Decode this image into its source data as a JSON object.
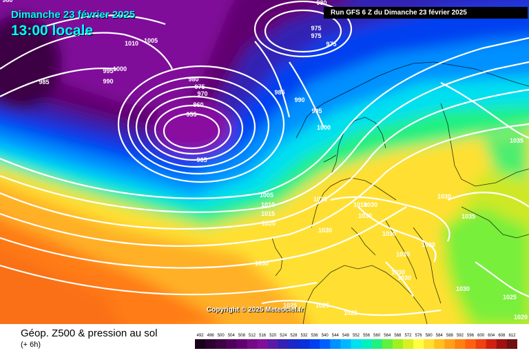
{
  "header": {
    "date_label": "Dimanche 23 février 2025",
    "time_label": "13:00 locale",
    "run_label": "Run GFS 6 Z du Dimanche 23 février 2025"
  },
  "copyright": "Copyright © 2025 Meteociel.fr",
  "footer": {
    "title": "Géop. Z500 & pression au sol",
    "subtitle": "(+ 6h)"
  },
  "legend": {
    "values": [
      "492",
      "496",
      "500",
      "504",
      "508",
      "512",
      "516",
      "520",
      "524",
      "528",
      "532",
      "536",
      "540",
      "544",
      "548",
      "552",
      "556",
      "560",
      "564",
      "568",
      "572",
      "576",
      "580",
      "584",
      "588",
      "592",
      "596",
      "600",
      "604",
      "608",
      "612"
    ],
    "colors": [
      "#1a001a",
      "#2b0030",
      "#3d0045",
      "#4f005a",
      "#610070",
      "#740a86",
      "#80109a",
      "#5a1aa8",
      "#3320b4",
      "#1a28c8",
      "#0a30dc",
      "#0040f0",
      "#0060ff",
      "#0090ff",
      "#00b8ff",
      "#00e0f0",
      "#00f0c0",
      "#20f080",
      "#60f040",
      "#a0f020",
      "#d8f020",
      "#ffff40",
      "#ffe030",
      "#ffc020",
      "#ffa018",
      "#ff8010",
      "#ff6010",
      "#f04010",
      "#d02010",
      "#a01010",
      "#701010"
    ]
  },
  "isobar_labels": [
    {
      "text": "1010"
    },
    {
      "text": "1005"
    },
    {
      "text": "995"
    },
    {
      "text": "1000"
    },
    {
      "text": "985"
    },
    {
      "text": "990"
    },
    {
      "text": "980"
    },
    {
      "text": "975"
    },
    {
      "text": "975"
    },
    {
      "text": "975"
    },
    {
      "text": "980"
    },
    {
      "text": "980"
    },
    {
      "text": "975"
    },
    {
      "text": "970"
    },
    {
      "text": "960"
    },
    {
      "text": "955"
    },
    {
      "text": "965"
    },
    {
      "text": "985"
    },
    {
      "text": "990"
    },
    {
      "text": "995"
    },
    {
      "text": "1000"
    },
    {
      "text": "1005"
    },
    {
      "text": "1010"
    },
    {
      "text": "1015"
    },
    {
      "text": "1020"
    },
    {
      "text": "1025"
    },
    {
      "text": "1010"
    },
    {
      "text": "1030"
    },
    {
      "text": "1030"
    },
    {
      "text": "1030"
    },
    {
      "text": "1030"
    },
    {
      "text": "1030"
    },
    {
      "text": "1030"
    },
    {
      "text": "1030"
    },
    {
      "text": "1030"
    },
    {
      "text": "1030"
    },
    {
      "text": "1030"
    },
    {
      "text": "1035"
    },
    {
      "text": "1035"
    },
    {
      "text": "1025"
    },
    {
      "text": "1020"
    },
    {
      "text": "1025"
    },
    {
      "text": "1025"
    },
    {
      "text": "1025"
    },
    {
      "text": "1030"
    }
  ]
}
